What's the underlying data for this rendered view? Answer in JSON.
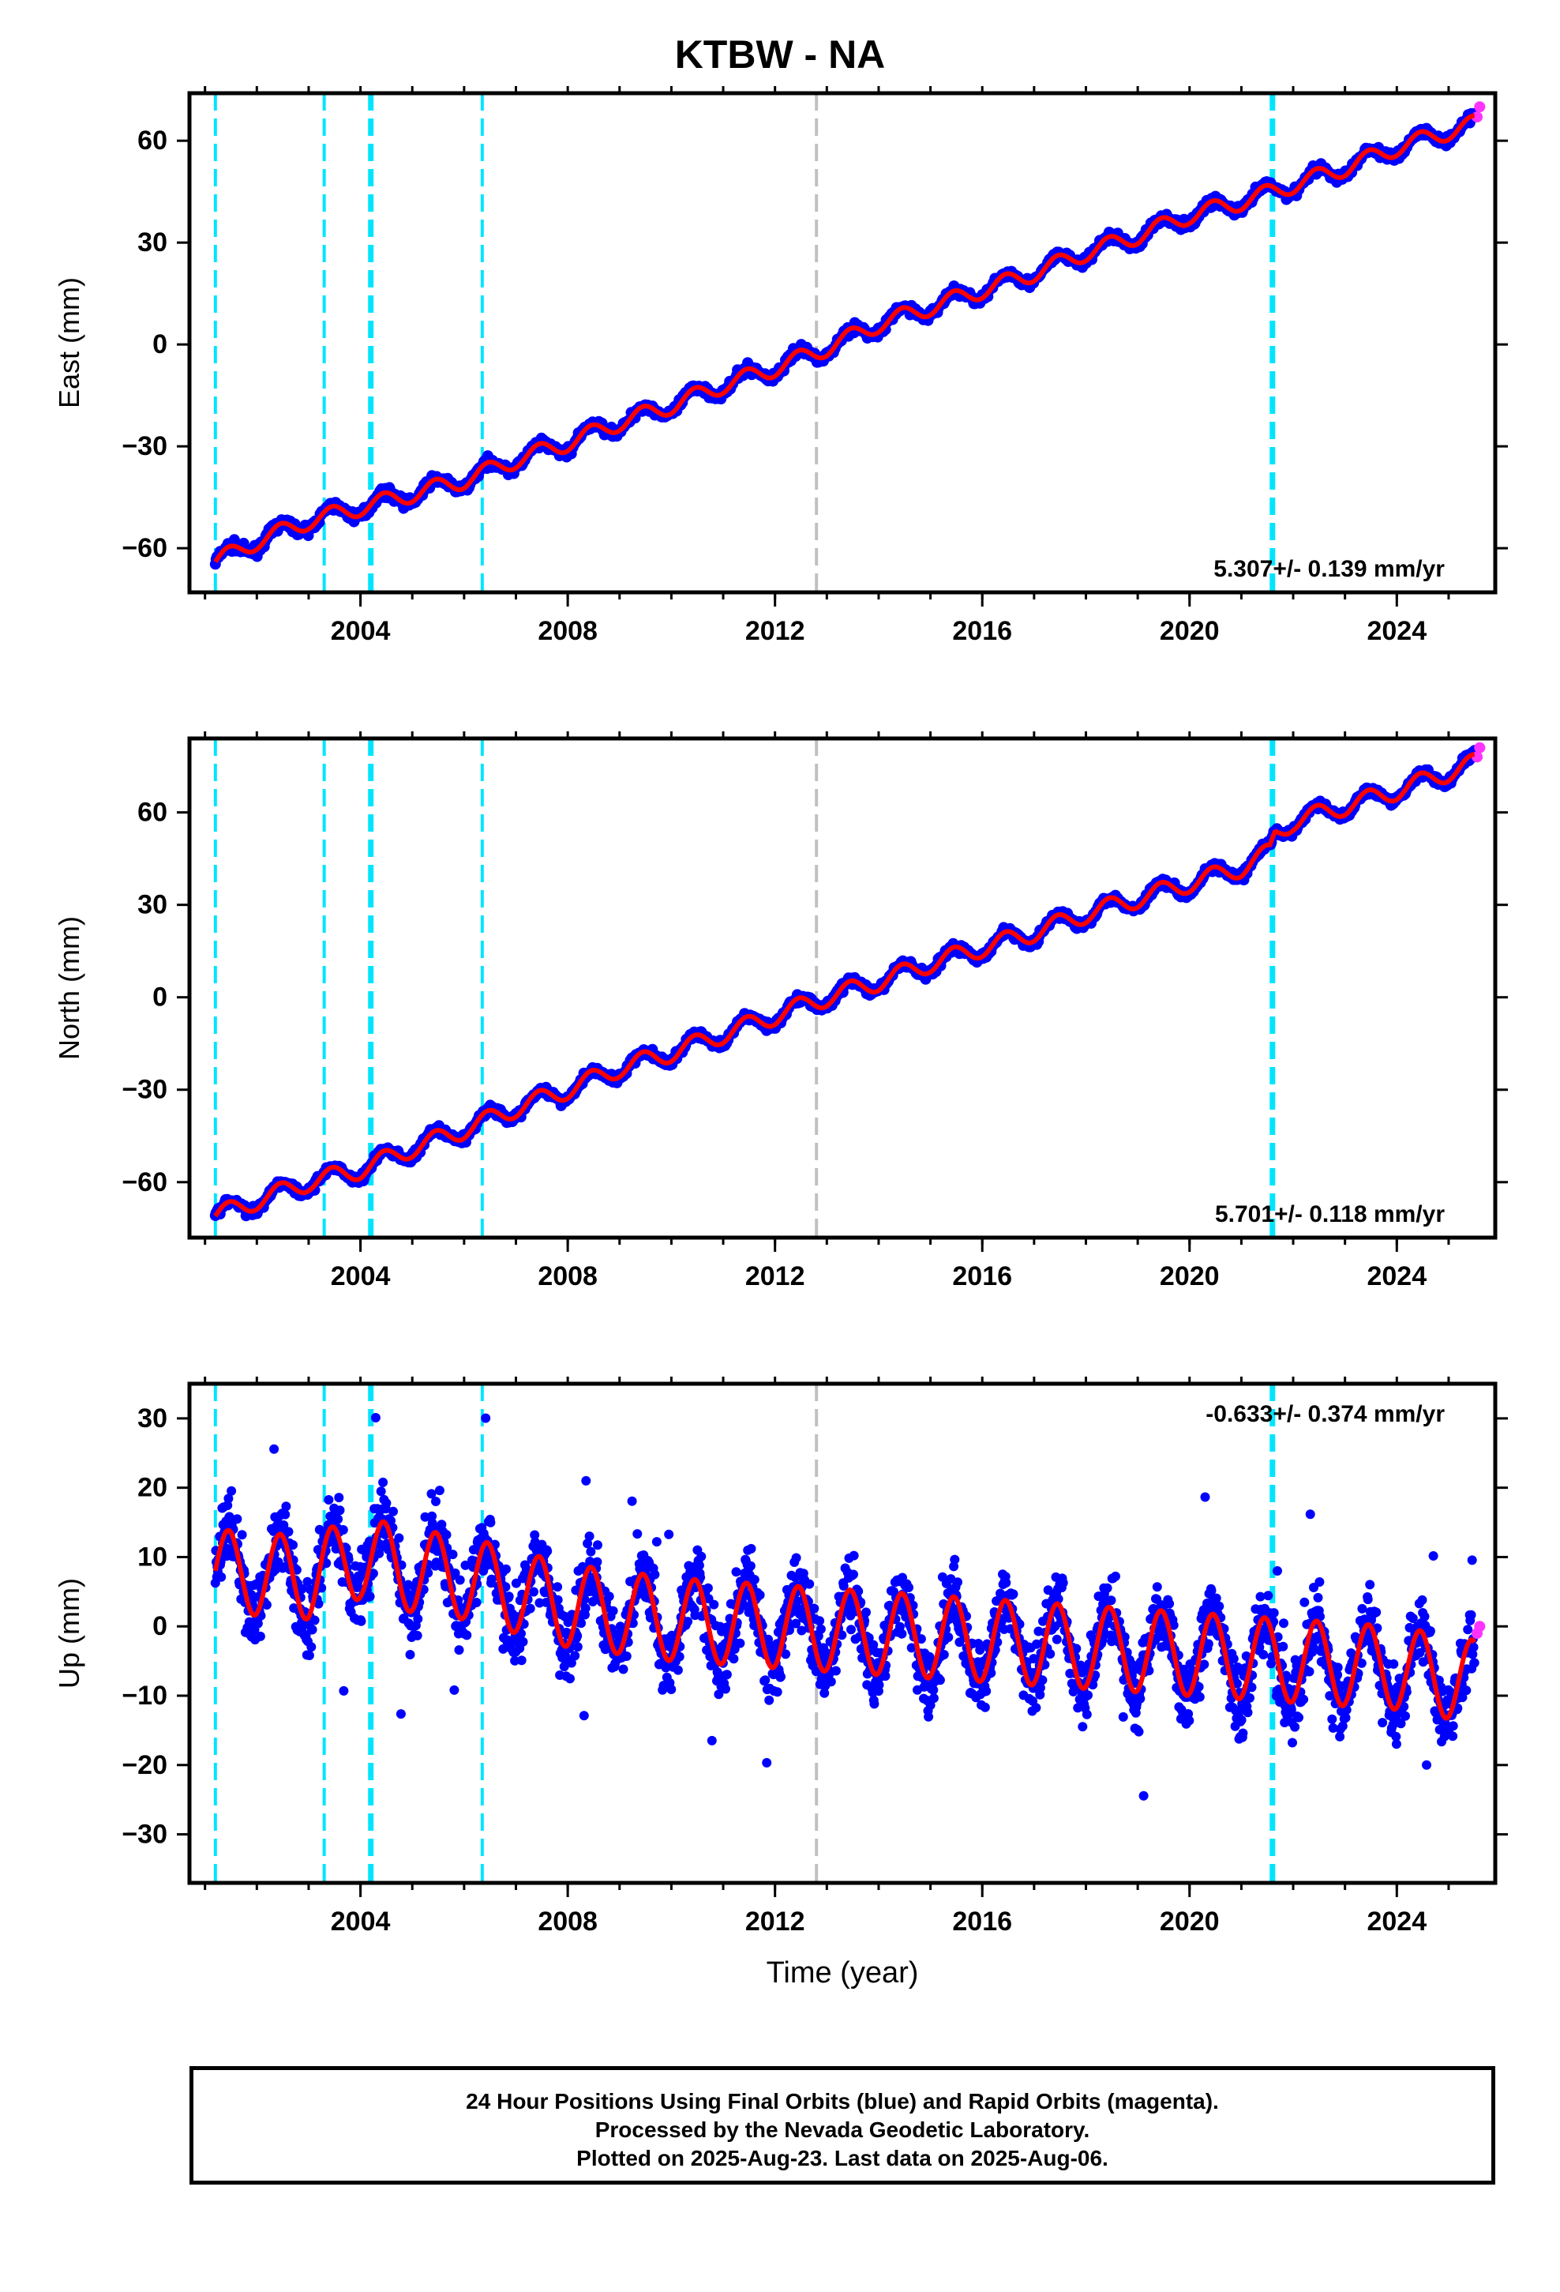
{
  "title": "KTBW - NA",
  "xlabel": "Time (year)",
  "footer": {
    "line1": "24 Hour Positions Using Final Orbits (blue) and Rapid Orbits (magenta).",
    "line2": "Processed by the Nevada Geodetic Laboratory.",
    "line3": "Plotted on 2025-Aug-23. Last data on 2025-Aug-06."
  },
  "colors": {
    "final": "#0000ff",
    "rapid": "#ff33ff",
    "model": "#ff0000",
    "offset_cyan": "#00e5ff",
    "offset_gray": "#c0c0c0"
  },
  "chart_data": [
    {
      "type": "scatter",
      "ylabel": "East (mm)",
      "xlim": [
        2000.7,
        2025.9
      ],
      "ylim": [
        -73,
        74
      ],
      "xticks": [
        2004,
        2008,
        2012,
        2016,
        2020,
        2024
      ],
      "yticks": [
        -60,
        -30,
        0,
        30,
        60
      ],
      "rate_text": "5.307+/- 0.139 mm/yr",
      "rate_position": "bottom-right",
      "series": [
        {
          "role": "final",
          "x": [
            2001.2,
            2002.0,
            2003.0,
            2004.0,
            2005.0,
            2006.0,
            2007.0,
            2008.0,
            2009.0,
            2010.0,
            2011.0,
            2012.0,
            2013.0,
            2014.0,
            2015.0,
            2016.0,
            2017.0,
            2018.0,
            2019.0,
            2020.0,
            2021.0,
            2022.0,
            2023.0,
            2024.0,
            2025.5
          ],
          "values": [
            -64,
            -58,
            -52,
            -48,
            -44,
            -40,
            -34,
            -29,
            -23,
            -18,
            -12,
            -7,
            -1,
            6,
            11,
            16,
            21,
            27,
            32,
            38,
            42,
            47,
            52,
            58,
            65
          ]
        },
        {
          "role": "rapid",
          "x": [
            2025.55,
            2025.6
          ],
          "values": [
            67,
            70
          ]
        }
      ],
      "annual_amplitude": 2.5,
      "offsets": [
        {
          "x": 2001.2,
          "kind": "cyan"
        },
        {
          "x": 2003.3,
          "kind": "cyan"
        },
        {
          "x": 2004.2,
          "kind": "cyan-bold"
        },
        {
          "x": 2006.35,
          "kind": "cyan"
        },
        {
          "x": 2012.8,
          "kind": "gray"
        },
        {
          "x": 2021.6,
          "kind": "cyan-bold"
        }
      ]
    },
    {
      "type": "scatter",
      "ylabel": "North (mm)",
      "xlim": [
        2000.7,
        2025.9
      ],
      "ylim": [
        -78,
        84
      ],
      "xticks": [
        2004,
        2008,
        2012,
        2016,
        2020,
        2024
      ],
      "yticks": [
        -60,
        -30,
        0,
        30,
        60
      ],
      "rate_text": "5.701+/- 0.118 mm/yr",
      "rate_position": "bottom-right",
      "series": [
        {
          "role": "final",
          "x": [
            2001.2,
            2002.0,
            2003.0,
            2004.0,
            2005.0,
            2006.0,
            2007.0,
            2008.0,
            2009.0,
            2010.0,
            2011.0,
            2012.0,
            2013.0,
            2014.0,
            2015.0,
            2016.0,
            2017.0,
            2018.0,
            2019.0,
            2020.0,
            2021.0,
            2021.55,
            2021.65,
            2022.0,
            2023.0,
            2024.0,
            2025.5
          ],
          "values": [
            -71,
            -66,
            -60,
            -56,
            -49,
            -43,
            -36,
            -30,
            -23,
            -18,
            -12,
            -6,
            0,
            5,
            11,
            16,
            21,
            27,
            32,
            37,
            42,
            47,
            53,
            57,
            62,
            67,
            76
          ]
        },
        {
          "role": "rapid",
          "x": [
            2025.55,
            2025.6
          ],
          "values": [
            78,
            81
          ]
        }
      ],
      "annual_amplitude": 3,
      "offsets": [
        {
          "x": 2001.2,
          "kind": "cyan"
        },
        {
          "x": 2003.3,
          "kind": "cyan"
        },
        {
          "x": 2004.2,
          "kind": "cyan-bold"
        },
        {
          "x": 2006.35,
          "kind": "cyan"
        },
        {
          "x": 2012.8,
          "kind": "gray"
        },
        {
          "x": 2021.6,
          "kind": "cyan-bold"
        }
      ]
    },
    {
      "type": "scatter",
      "ylabel": "Up (mm)",
      "xlim": [
        2000.7,
        2025.9
      ],
      "ylim": [
        -37,
        35
      ],
      "xticks": [
        2004,
        2008,
        2012,
        2016,
        2020,
        2024
      ],
      "yticks": [
        -30,
        -20,
        -10,
        0,
        10,
        20,
        30
      ],
      "rate_text": "-0.633+/- 0.374 mm/yr",
      "rate_position": "top-right",
      "series": [
        {
          "role": "final",
          "x": [
            2001.2,
            2003.0,
            2004.0,
            2005.0,
            2006.0,
            2007.0,
            2008.0,
            2010.0,
            2012.0,
            2014.0,
            2016.0,
            2018.0,
            2020.0,
            2022.0,
            2024.0,
            2025.5
          ],
          "values": [
            8,
            7,
            10,
            8,
            7,
            5,
            3,
            1,
            0,
            -1,
            -2,
            -3,
            -4,
            -5,
            -6,
            -8
          ]
        },
        {
          "role": "rapid",
          "x": [
            2025.55,
            2025.6
          ],
          "values": [
            -1,
            0
          ]
        }
      ],
      "annual_amplitude": 6,
      "scatter_spread": 5,
      "offsets": [
        {
          "x": 2001.2,
          "kind": "cyan"
        },
        {
          "x": 2003.3,
          "kind": "cyan"
        },
        {
          "x": 2004.2,
          "kind": "cyan-bold"
        },
        {
          "x": 2006.35,
          "kind": "cyan"
        },
        {
          "x": 2012.8,
          "kind": "gray"
        },
        {
          "x": 2021.6,
          "kind": "cyan-bold"
        }
      ]
    }
  ]
}
